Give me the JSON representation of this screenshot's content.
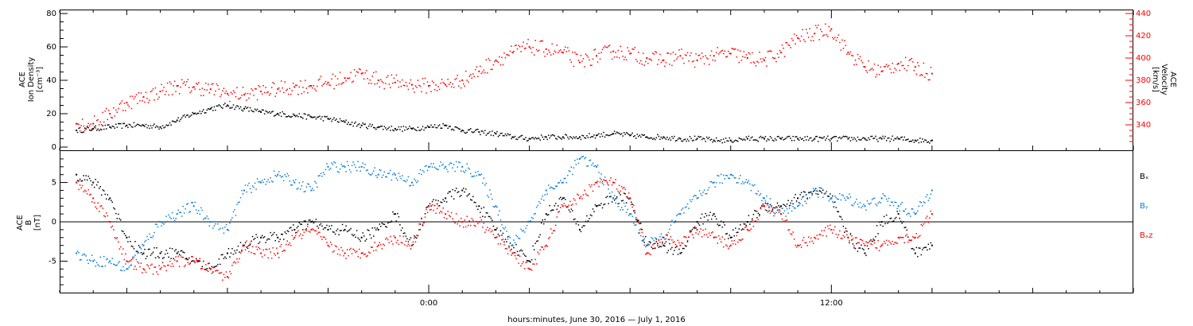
{
  "chart_data": [
    {
      "type": "scatter",
      "panel": "plasma",
      "ylabel_lines": [
        "ACE",
        "Ion Density",
        "[cm⁻³]"
      ],
      "y2label_lines": [
        "ACE",
        "Velocity",
        "[km/s]"
      ],
      "ylim": [
        0,
        80
      ],
      "y2lim": [
        320,
        440
      ],
      "yticks": [
        "0",
        "20",
        "40",
        "60",
        "80"
      ],
      "y2ticks": [
        "340",
        "360",
        "380",
        "400",
        "420",
        "440"
      ],
      "colors": {
        "density": "#000000",
        "velocity": "#ff0000"
      },
      "series": [
        {
          "key": "density",
          "x": [
            -10.5,
            -10.0,
            -9.5,
            -9.0,
            -8.5,
            -8.0,
            -7.5,
            -7.0,
            -6.5,
            -6.0,
            -5.5,
            -5.0,
            -4.5,
            -4.0,
            -3.5,
            -3.0,
            -2.5,
            -2.0,
            -1.5,
            -1.0,
            -0.5,
            0.0,
            0.5,
            1.0,
            1.5,
            2.0,
            2.5,
            3.0,
            3.5,
            4.0,
            4.5,
            5.0,
            5.5,
            6.0,
            6.5,
            7.0,
            7.5,
            8.0,
            8.5,
            9.0,
            9.5,
            10.0,
            10.5,
            11.0,
            11.5,
            12.0,
            12.5,
            13.0,
            13.5,
            14.0,
            14.5,
            15.0
          ],
          "values": [
            10,
            11,
            12,
            13,
            13,
            12,
            16,
            20,
            23,
            25,
            23,
            21,
            20,
            19,
            18,
            17,
            15,
            13,
            12,
            11,
            11,
            12,
            13,
            10,
            9,
            8,
            6,
            5,
            6,
            6,
            6,
            7,
            8,
            7,
            6,
            6,
            5,
            5,
            4,
            4,
            5,
            5,
            5,
            5,
            5,
            5,
            5,
            5,
            5,
            5,
            4,
            4
          ]
        },
        {
          "key": "velocity",
          "x": [
            -10.5,
            -10.0,
            -9.5,
            -9.0,
            -8.5,
            -8.0,
            -7.5,
            -7.0,
            -6.5,
            -6.0,
            -5.5,
            -5.0,
            -4.5,
            -4.0,
            -3.5,
            -3.0,
            -2.5,
            -2.0,
            -1.5,
            -1.0,
            -0.5,
            0.0,
            0.5,
            1.0,
            1.5,
            2.0,
            2.5,
            3.0,
            3.5,
            4.0,
            4.5,
            5.0,
            5.5,
            6.0,
            6.5,
            7.0,
            7.5,
            8.0,
            8.5,
            9.0,
            9.5,
            10.0,
            10.5,
            11.0,
            11.5,
            12.0,
            12.5,
            13.0,
            13.5,
            14.0,
            14.5,
            15.0
          ],
          "values": [
            341,
            341,
            350,
            360,
            365,
            370,
            375,
            374,
            372,
            368,
            367,
            370,
            372,
            374,
            375,
            378,
            382,
            386,
            380,
            378,
            376,
            375,
            376,
            380,
            388,
            398,
            405,
            410,
            408,
            405,
            396,
            402,
            406,
            404,
            400,
            398,
            402,
            398,
            402,
            404,
            400,
            398,
            405,
            418,
            422,
            426,
            405,
            392,
            388,
            395,
            392,
            386
          ]
        }
      ]
    },
    {
      "type": "scatter",
      "panel": "magnetic field",
      "ylabel_lines": [
        "ACE",
        "B",
        "[nT]"
      ],
      "ylim": [
        -9,
        9
      ],
      "yticks": [
        "-5",
        "0",
        "5"
      ],
      "zero_line": true,
      "legend": [
        "Bₓ",
        "Bᵧ",
        "Bₓz"
      ],
      "colors": {
        "bx": "#000000",
        "by": "#0a7fd9",
        "bz": "#ff0000"
      },
      "series": [
        {
          "name": "Bx",
          "x": [
            -10.5,
            -10.0,
            -9.5,
            -9.0,
            -8.5,
            -8.0,
            -7.5,
            -7.0,
            -6.5,
            -6.0,
            -5.5,
            -5.0,
            -4.5,
            -4.0,
            -3.5,
            -3.0,
            -2.5,
            -2.0,
            -1.5,
            -1.0,
            -0.5,
            0.0,
            0.5,
            1.0,
            1.5,
            2.0,
            2.5,
            3.0,
            3.5,
            4.0,
            4.5,
            5.0,
            5.5,
            6.0,
            6.5,
            7.0,
            7.5,
            8.0,
            8.5,
            9.0,
            9.5,
            10.0,
            10.5,
            11.0,
            11.5,
            12.0,
            12.5,
            13.0,
            13.5,
            14.0,
            14.5,
            15.0
          ],
          "values": [
            6,
            5,
            3,
            -2,
            -4,
            -4,
            -4,
            -5,
            -6,
            -4,
            -3,
            -2,
            -2,
            -1,
            0,
            -1,
            -1,
            -2,
            -1,
            1,
            -3,
            2,
            3,
            4,
            2,
            -1,
            -3,
            -5,
            1,
            3,
            -1,
            2,
            3,
            3,
            -3,
            -3,
            -4,
            0,
            1,
            -2,
            0,
            2,
            2,
            3,
            4,
            3,
            -2,
            -4,
            0,
            1,
            -4,
            -3
          ]
        },
        {
          "name": "By",
          "x": [
            -10.5,
            -10.0,
            -9.5,
            -9.0,
            -8.5,
            -8.0,
            -7.5,
            -7.0,
            -6.5,
            -6.0,
            -5.5,
            -5.0,
            -4.5,
            -4.0,
            -3.5,
            -3.0,
            -2.5,
            -2.0,
            -1.5,
            -1.0,
            -0.5,
            0.0,
            0.5,
            1.0,
            1.5,
            2.0,
            2.5,
            3.0,
            3.5,
            4.0,
            4.5,
            5.0,
            5.5,
            6.0,
            6.5,
            7.0,
            7.5,
            8.0,
            8.5,
            9.0,
            9.5,
            10.0,
            10.5,
            11.0,
            11.5,
            12.0,
            12.5,
            13.0,
            13.5,
            14.0,
            14.5,
            15.0
          ],
          "values": [
            -4,
            -5,
            -5,
            -6,
            -3,
            0,
            1,
            2,
            0,
            -1,
            4,
            5,
            6,
            5,
            4,
            7,
            7,
            7,
            6,
            6,
            5,
            7,
            7,
            7,
            6,
            2,
            -3,
            0,
            4,
            5,
            8,
            7,
            3,
            1,
            -3,
            -2,
            1,
            3,
            5,
            6,
            5,
            3,
            1,
            2,
            4,
            3,
            3,
            2,
            3,
            2,
            1,
            4
          ]
        },
        {
          "name": "Bz",
          "x": [
            -10.5,
            -10.0,
            -9.5,
            -9.0,
            -8.5,
            -8.0,
            -7.5,
            -7.0,
            -6.5,
            -6.0,
            -5.5,
            -5.0,
            -4.5,
            -4.0,
            -3.5,
            -3.0,
            -2.5,
            -2.0,
            -1.5,
            -1.0,
            -0.5,
            0.0,
            0.5,
            1.0,
            1.5,
            2.0,
            2.5,
            3.0,
            3.5,
            4.0,
            4.5,
            5.0,
            5.5,
            6.0,
            6.5,
            7.0,
            7.5,
            8.0,
            8.5,
            9.0,
            9.5,
            10.0,
            10.5,
            11.0,
            11.5,
            12.0,
            12.5,
            13.0,
            13.5,
            14.0,
            14.5,
            15.0
          ],
          "values": [
            5,
            3,
            0,
            -5,
            -6,
            -6,
            -5,
            -5,
            -6,
            -7,
            -3,
            -4,
            -4,
            -2,
            -1,
            -3,
            -4,
            -4,
            -3,
            -2,
            -3,
            2,
            1,
            0,
            0,
            -2,
            -4,
            -6,
            -3,
            2,
            3,
            5,
            5,
            3,
            -4,
            -2,
            -3,
            -1,
            -2,
            -3,
            -1,
            2,
            1,
            -3,
            -2,
            -1,
            -2,
            -3,
            -3,
            -2,
            -2,
            1
          ]
        }
      ]
    }
  ],
  "xaxis": {
    "label": "hours:minutes, June 30, 2016 — July  1, 2016",
    "xlim": [
      -11,
      21
    ],
    "ticks": [
      {
        "value": 0,
        "label": "0:00"
      },
      {
        "value": 12,
        "label": "12:00"
      }
    ]
  }
}
